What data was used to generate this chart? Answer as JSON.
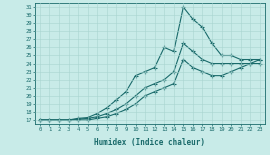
{
  "xlabel": "Humidex (Indice chaleur)",
  "bg_color": "#c8ebe8",
  "grid_color": "#a8d4d0",
  "line_color": "#1a6b6b",
  "xlim": [
    -0.5,
    23.5
  ],
  "ylim": [
    16.5,
    31.5
  ],
  "yticks": [
    17,
    18,
    19,
    20,
    21,
    22,
    23,
    24,
    25,
    26,
    27,
    28,
    29,
    30,
    31
  ],
  "xticks": [
    0,
    1,
    2,
    3,
    4,
    5,
    6,
    7,
    8,
    9,
    10,
    11,
    12,
    13,
    14,
    15,
    16,
    17,
    18,
    19,
    20,
    21,
    22,
    23
  ],
  "line1_x": [
    0,
    1,
    2,
    3,
    4,
    5,
    6,
    7,
    8,
    9,
    10,
    11,
    12,
    13,
    14,
    15,
    16,
    17,
    18,
    19,
    20,
    21,
    22,
    23
  ],
  "line1_y": [
    17,
    17,
    17,
    17,
    17.2,
    17.3,
    17.8,
    18.5,
    19.5,
    20.5,
    22.5,
    23,
    23.5,
    26,
    25.5,
    31,
    29.5,
    28.5,
    26.5,
    25,
    25,
    24.5,
    24.5,
    24.5
  ],
  "line2_x": [
    0,
    1,
    2,
    3,
    4,
    5,
    6,
    7,
    8,
    9,
    10,
    11,
    12,
    13,
    14,
    15,
    16,
    17,
    18,
    19,
    20,
    21,
    22,
    23
  ],
  "line2_y": [
    17,
    17,
    17,
    17,
    17.1,
    17.2,
    17.4,
    17.8,
    18.3,
    19,
    20,
    21,
    21.5,
    22,
    23,
    26.5,
    25.5,
    24.5,
    24,
    24,
    24,
    24,
    24,
    24
  ],
  "line3_x": [
    0,
    1,
    2,
    3,
    4,
    5,
    6,
    7,
    8,
    9,
    10,
    11,
    12,
    13,
    14,
    15,
    16,
    17,
    18,
    19,
    20,
    21,
    22,
    23
  ],
  "line3_y": [
    17,
    17,
    17,
    17,
    17,
    17,
    17.2,
    17.4,
    17.8,
    18.3,
    19,
    20,
    20.5,
    21,
    21.5,
    24.5,
    23.5,
    23,
    22.5,
    22.5,
    23,
    23.5,
    24,
    24.5
  ]
}
